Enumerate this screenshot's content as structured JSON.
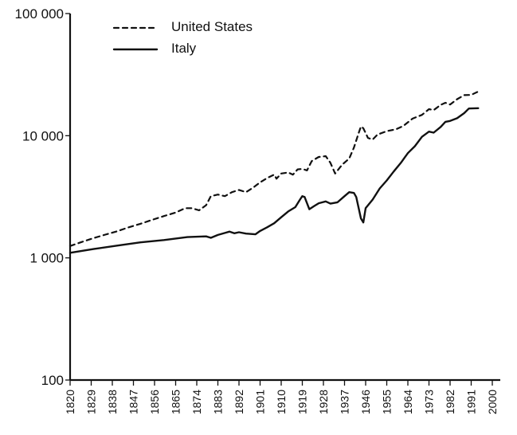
{
  "chart_data": {
    "type": "line",
    "y_scale": "log",
    "ylim": [
      100,
      100000
    ],
    "xlim": [
      1820,
      2000
    ],
    "grid": false,
    "legend_placement": "top-left",
    "y_ticks": [
      {
        "value": 100,
        "label": "100"
      },
      {
        "value": 1000,
        "label": "1 000"
      },
      {
        "value": 10000,
        "label": "10 000"
      },
      {
        "value": 100000,
        "label": "100 000"
      }
    ],
    "x_ticks": [
      "1820",
      "1829",
      "1838",
      "1847",
      "1856",
      "1865",
      "1874",
      "1883",
      "1892",
      "1901",
      "1910",
      "1919",
      "1928",
      "1937",
      "1946",
      "1955",
      "1964",
      "1973",
      "1982",
      "1991",
      "2000"
    ],
    "series": [
      {
        "name": "United States",
        "style": "dashed",
        "points": [
          [
            1820,
            1250
          ],
          [
            1825,
            1350
          ],
          [
            1830,
            1450
          ],
          [
            1835,
            1550
          ],
          [
            1840,
            1650
          ],
          [
            1845,
            1780
          ],
          [
            1850,
            1900
          ],
          [
            1855,
            2050
          ],
          [
            1860,
            2200
          ],
          [
            1865,
            2350
          ],
          [
            1869,
            2550
          ],
          [
            1872,
            2550
          ],
          [
            1875,
            2450
          ],
          [
            1878,
            2700
          ],
          [
            1880,
            3200
          ],
          [
            1883,
            3300
          ],
          [
            1886,
            3200
          ],
          [
            1889,
            3450
          ],
          [
            1892,
            3600
          ],
          [
            1895,
            3450
          ],
          [
            1898,
            3750
          ],
          [
            1901,
            4150
          ],
          [
            1904,
            4500
          ],
          [
            1907,
            4800
          ],
          [
            1908,
            4450
          ],
          [
            1910,
            4900
          ],
          [
            1913,
            5000
          ],
          [
            1915,
            4800
          ],
          [
            1917,
            5300
          ],
          [
            1919,
            5350
          ],
          [
            1921,
            5200
          ],
          [
            1923,
            6200
          ],
          [
            1926,
            6700
          ],
          [
            1929,
            6800
          ],
          [
            1931,
            6000
          ],
          [
            1933,
            4900
          ],
          [
            1936,
            5800
          ],
          [
            1939,
            6500
          ],
          [
            1941,
            8000
          ],
          [
            1943,
            10500
          ],
          [
            1944,
            11900
          ],
          [
            1945,
            11500
          ],
          [
            1947,
            9600
          ],
          [
            1949,
            9300
          ],
          [
            1951,
            10200
          ],
          [
            1955,
            10900
          ],
          [
            1959,
            11300
          ],
          [
            1962,
            12000
          ],
          [
            1966,
            13800
          ],
          [
            1970,
            14800
          ],
          [
            1973,
            16500
          ],
          [
            1975,
            16200
          ],
          [
            1978,
            17900
          ],
          [
            1980,
            18600
          ],
          [
            1982,
            18000
          ],
          [
            1985,
            19900
          ],
          [
            1988,
            21500
          ],
          [
            1991,
            21600
          ],
          [
            1994,
            23000
          ]
        ]
      },
      {
        "name": "Italy",
        "style": "solid",
        "points": [
          [
            1820,
            1100
          ],
          [
            1830,
            1180
          ],
          [
            1840,
            1260
          ],
          [
            1850,
            1340
          ],
          [
            1860,
            1400
          ],
          [
            1870,
            1480
          ],
          [
            1878,
            1500
          ],
          [
            1880,
            1460
          ],
          [
            1883,
            1540
          ],
          [
            1886,
            1600
          ],
          [
            1888,
            1640
          ],
          [
            1890,
            1590
          ],
          [
            1892,
            1620
          ],
          [
            1895,
            1580
          ],
          [
            1899,
            1560
          ],
          [
            1901,
            1660
          ],
          [
            1904,
            1780
          ],
          [
            1907,
            1920
          ],
          [
            1910,
            2150
          ],
          [
            1913,
            2400
          ],
          [
            1916,
            2600
          ],
          [
            1918,
            3000
          ],
          [
            1919,
            3200
          ],
          [
            1920,
            3150
          ],
          [
            1922,
            2500
          ],
          [
            1924,
            2650
          ],
          [
            1926,
            2800
          ],
          [
            1929,
            2900
          ],
          [
            1931,
            2780
          ],
          [
            1934,
            2850
          ],
          [
            1937,
            3200
          ],
          [
            1939,
            3450
          ],
          [
            1941,
            3400
          ],
          [
            1942,
            3150
          ],
          [
            1944,
            2100
          ],
          [
            1945,
            1950
          ],
          [
            1946,
            2550
          ],
          [
            1949,
            3000
          ],
          [
            1952,
            3700
          ],
          [
            1955,
            4300
          ],
          [
            1958,
            5100
          ],
          [
            1961,
            6000
          ],
          [
            1964,
            7200
          ],
          [
            1967,
            8200
          ],
          [
            1970,
            9800
          ],
          [
            1973,
            10800
          ],
          [
            1975,
            10600
          ],
          [
            1978,
            11800
          ],
          [
            1980,
            13000
          ],
          [
            1982,
            13200
          ],
          [
            1985,
            13900
          ],
          [
            1988,
            15300
          ],
          [
            1990,
            16700
          ],
          [
            1994,
            16800
          ]
        ]
      }
    ]
  }
}
